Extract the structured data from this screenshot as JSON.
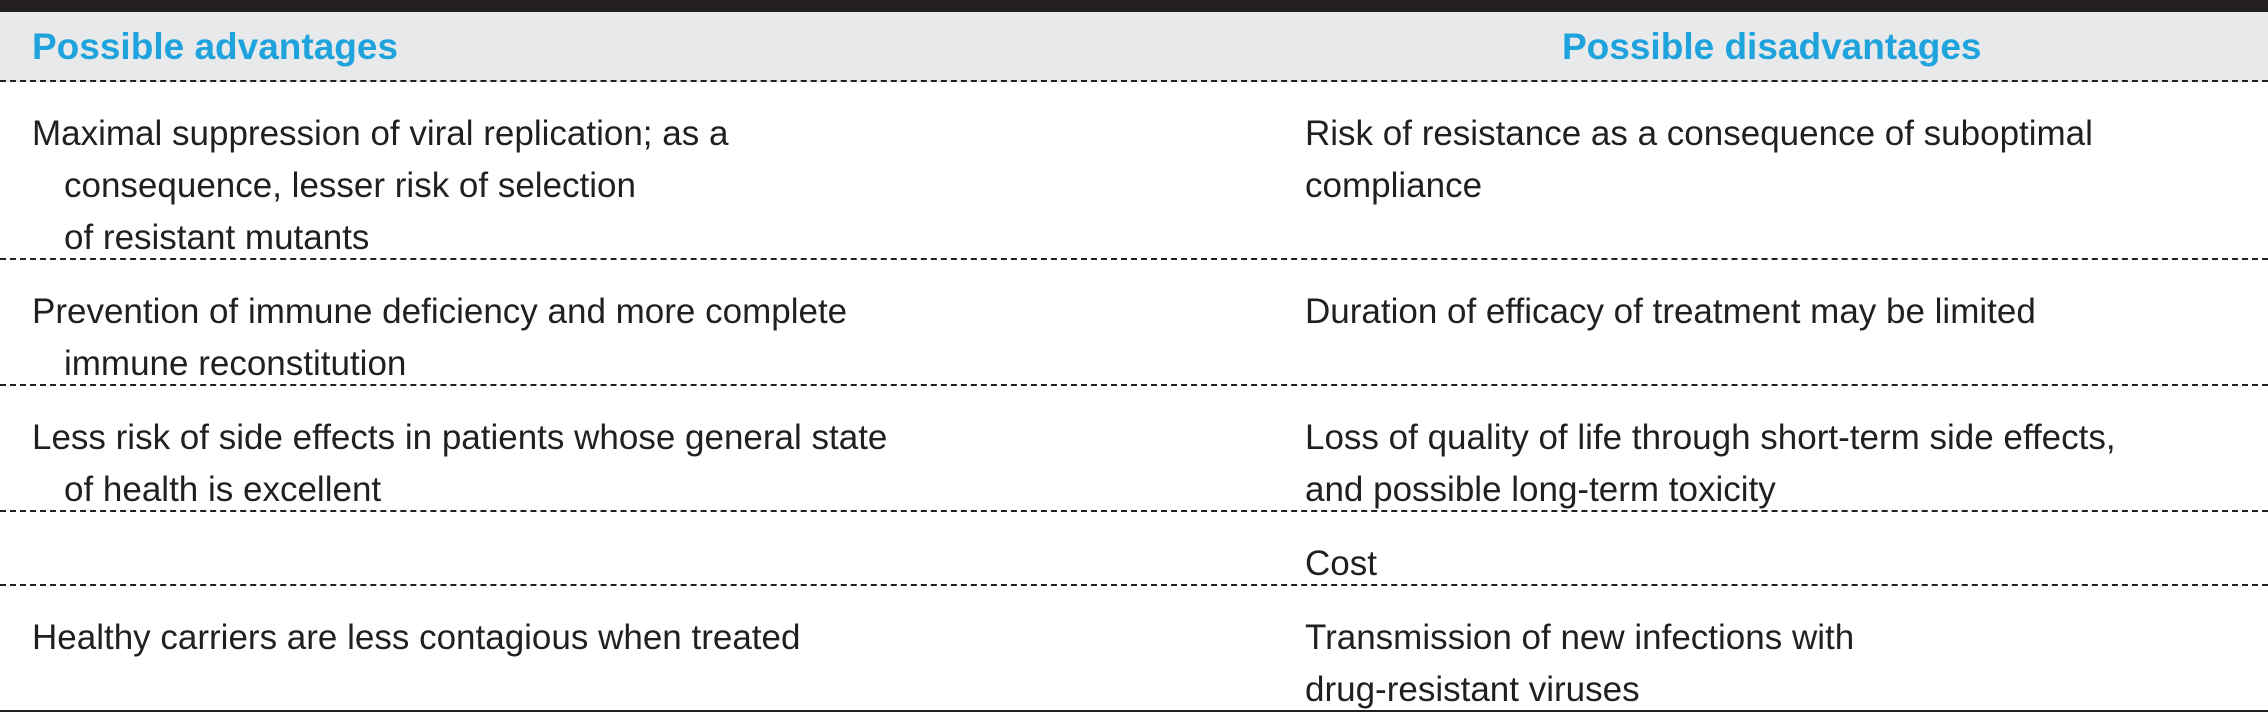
{
  "table": {
    "header": [
      "Possible advantages",
      "Possible disadvantages"
    ],
    "rows": [
      {
        "advantage": [
          "Maximal suppression of viral replication; as a",
          "consequence, lesser risk of selection",
          "of resistant mutants"
        ],
        "disadvantage": [
          "Risk of resistance as a consequence of suboptimal",
          "compliance"
        ]
      },
      {
        "advantage": [
          "Prevention of immune deficiency and more complete",
          "immune reconstitution"
        ],
        "disadvantage": [
          "Duration of efficacy of treatment may be limited"
        ]
      },
      {
        "advantage": [
          "Less risk of side effects in patients whose general state",
          "of health is excellent"
        ],
        "disadvantage": [
          "Loss of quality of life through short-term side effects,",
          "and possible long-term toxicity"
        ]
      },
      {
        "advantage": [],
        "disadvantage": [
          "Cost"
        ]
      },
      {
        "advantage": [
          "Healthy carriers are less contagious when treated"
        ],
        "disadvantage": [
          "Transmission of new infections with",
          "drug-resistant viruses"
        ]
      }
    ]
  }
}
